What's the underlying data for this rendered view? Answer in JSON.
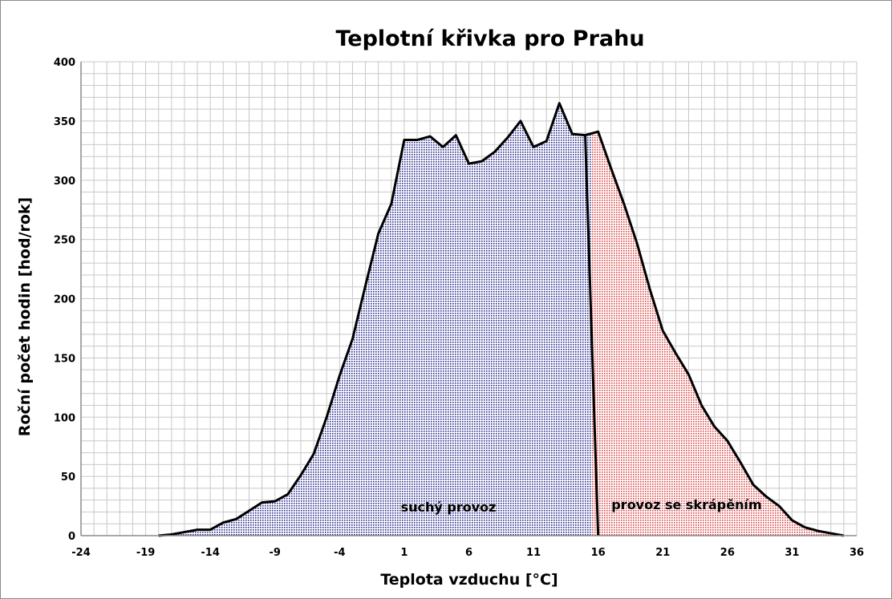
{
  "chart_data": {
    "type": "area",
    "title": "Teplotní křivka pro Prahu",
    "xlabel": "Teplota vzduchu [°C]",
    "ylabel": "Roční počet hodin [hod/rok]",
    "xlim": [
      -24,
      36
    ],
    "ylim": [
      0,
      400
    ],
    "x_ticks": [
      -24,
      -19,
      -14,
      -9,
      -4,
      1,
      6,
      11,
      16,
      21,
      26,
      31,
      36
    ],
    "y_ticks": [
      0,
      50,
      100,
      150,
      200,
      250,
      300,
      350,
      400
    ],
    "grid": true,
    "x": [
      -18,
      -17,
      -16,
      -15,
      -14,
      -13,
      -12,
      -11,
      -10,
      -9,
      -8,
      -7,
      -6,
      -5,
      -4,
      -3,
      -2,
      -1,
      0,
      1,
      2,
      3,
      4,
      5,
      6,
      7,
      8,
      9,
      10,
      11,
      12,
      13,
      14,
      15,
      16,
      17,
      18,
      19,
      20,
      21,
      22,
      23,
      24,
      25,
      26,
      27,
      28,
      29,
      30,
      31,
      32,
      33,
      34,
      35
    ],
    "values": [
      0,
      1,
      3,
      5,
      5,
      11,
      14,
      21,
      28,
      29,
      35,
      51,
      69,
      100,
      135,
      166,
      211,
      255,
      280,
      334,
      334,
      337,
      328,
      338,
      314,
      316,
      324,
      336,
      350,
      328,
      333,
      365,
      339,
      338,
      341,
      310,
      280,
      247,
      208,
      173,
      154,
      136,
      110,
      92,
      80,
      62,
      43,
      33,
      25,
      13,
      7,
      4,
      2,
      0
    ],
    "split_x": 15.5,
    "regions": [
      {
        "name": "suchý provoz",
        "color": "#2b2d8c"
      },
      {
        "name": "provoz se skrápěním",
        "color": "#d94a4a"
      }
    ]
  }
}
